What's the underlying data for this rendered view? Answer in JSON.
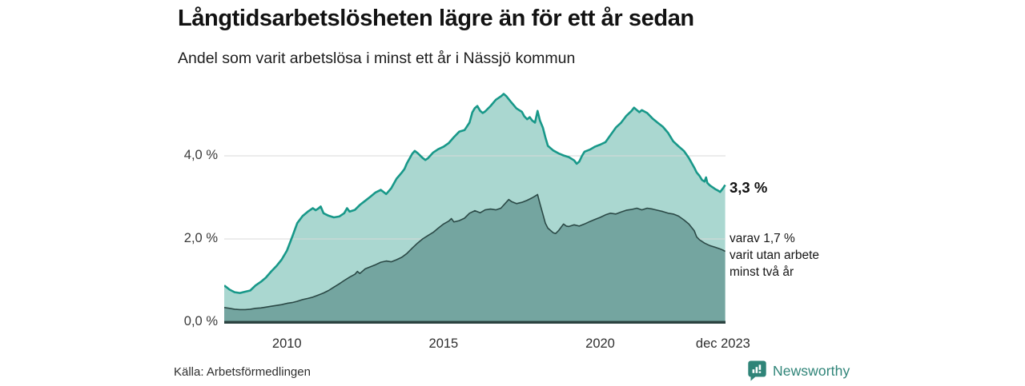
{
  "header": {
    "title": "Långtidsarbetslösheten lägre än för ett år sedan",
    "subtitle": "Andel som varit arbetslösa i minst ett år i Nässjö kommun"
  },
  "annotations": {
    "total_end_label": "3,3 %",
    "subset_end_label": "varav 1,7 %\nvarit utan arbete\nminst två år"
  },
  "footer": {
    "source": "Källa: Arbetsförmedlingen",
    "brand": "Newsworthy",
    "brand_icon": "newsworthy-pin-bar-chart"
  },
  "colors": {
    "total_stroke": "#189889",
    "total_fill": "#aad7d0",
    "subset_stroke": "#2b4946",
    "subset_fill": "#74a5a0",
    "gridline": "#d8d8d8",
    "axis": "#2b4240",
    "brand_teal": "#2f8478",
    "text": "#121212"
  },
  "chart_data": {
    "type": "area",
    "title": "Långtidsarbetslösheten lägre än för ett år sedan",
    "subtitle": "Andel som varit arbetslösa i minst ett år i Nässjö kommun",
    "xlabel": "",
    "ylabel": "",
    "unit": "%",
    "grid": true,
    "legend_position": "right-annotations",
    "x_domain": [
      2008,
      2024
    ],
    "ylim": [
      0,
      5.67
    ],
    "y_ticks": [
      {
        "v": 0,
        "label": "0,0 %"
      },
      {
        "v": 2,
        "label": "2,0 %"
      },
      {
        "v": 4,
        "label": "4,0 %"
      }
    ],
    "x_ticks": [
      {
        "t": 2010,
        "label": "2010"
      },
      {
        "t": 2015,
        "label": "2015"
      },
      {
        "t": 2020,
        "label": "2020"
      },
      {
        "t": 2023.92,
        "label": "dec 2023"
      }
    ],
    "series": [
      {
        "name": "Andel arbetslösa minst ett år",
        "end_value": 3.3,
        "end_label": "3,3 %",
        "stroke": "#189889",
        "fill": "#aad7d0",
        "stroke_width": 2.6,
        "points": [
          [
            2008.0,
            0.88
          ],
          [
            2008.17,
            0.78
          ],
          [
            2008.33,
            0.72
          ],
          [
            2008.5,
            0.7
          ],
          [
            2008.67,
            0.73
          ],
          [
            2008.83,
            0.76
          ],
          [
            2009.0,
            0.88
          ],
          [
            2009.17,
            0.97
          ],
          [
            2009.33,
            1.07
          ],
          [
            2009.5,
            1.22
          ],
          [
            2009.67,
            1.35
          ],
          [
            2009.83,
            1.5
          ],
          [
            2010.0,
            1.72
          ],
          [
            2010.17,
            2.05
          ],
          [
            2010.33,
            2.38
          ],
          [
            2010.5,
            2.55
          ],
          [
            2010.67,
            2.66
          ],
          [
            2010.83,
            2.74
          ],
          [
            2010.92,
            2.69
          ],
          [
            2011.0,
            2.73
          ],
          [
            2011.08,
            2.78
          ],
          [
            2011.17,
            2.62
          ],
          [
            2011.33,
            2.56
          ],
          [
            2011.5,
            2.52
          ],
          [
            2011.67,
            2.54
          ],
          [
            2011.83,
            2.62
          ],
          [
            2011.92,
            2.74
          ],
          [
            2012.0,
            2.66
          ],
          [
            2012.17,
            2.7
          ],
          [
            2012.33,
            2.82
          ],
          [
            2012.5,
            2.92
          ],
          [
            2012.67,
            3.02
          ],
          [
            2012.83,
            3.12
          ],
          [
            2013.0,
            3.18
          ],
          [
            2013.17,
            3.08
          ],
          [
            2013.33,
            3.22
          ],
          [
            2013.5,
            3.45
          ],
          [
            2013.67,
            3.6
          ],
          [
            2013.75,
            3.68
          ],
          [
            2013.83,
            3.82
          ],
          [
            2014.0,
            4.05
          ],
          [
            2014.08,
            4.12
          ],
          [
            2014.17,
            4.07
          ],
          [
            2014.33,
            3.95
          ],
          [
            2014.42,
            3.9
          ],
          [
            2014.5,
            3.94
          ],
          [
            2014.67,
            4.08
          ],
          [
            2014.83,
            4.16
          ],
          [
            2015.0,
            4.22
          ],
          [
            2015.17,
            4.31
          ],
          [
            2015.33,
            4.45
          ],
          [
            2015.5,
            4.58
          ],
          [
            2015.67,
            4.62
          ],
          [
            2015.83,
            4.8
          ],
          [
            2015.92,
            5.05
          ],
          [
            2016.0,
            5.15
          ],
          [
            2016.08,
            5.2
          ],
          [
            2016.17,
            5.08
          ],
          [
            2016.25,
            5.03
          ],
          [
            2016.33,
            5.07
          ],
          [
            2016.5,
            5.2
          ],
          [
            2016.67,
            5.35
          ],
          [
            2016.83,
            5.43
          ],
          [
            2016.92,
            5.49
          ],
          [
            2017.0,
            5.44
          ],
          [
            2017.17,
            5.28
          ],
          [
            2017.33,
            5.14
          ],
          [
            2017.5,
            5.06
          ],
          [
            2017.58,
            4.95
          ],
          [
            2017.67,
            4.88
          ],
          [
            2017.75,
            4.93
          ],
          [
            2017.83,
            4.85
          ],
          [
            2017.92,
            4.8
          ],
          [
            2018.0,
            5.08
          ],
          [
            2018.08,
            4.84
          ],
          [
            2018.17,
            4.68
          ],
          [
            2018.25,
            4.45
          ],
          [
            2018.33,
            4.24
          ],
          [
            2018.5,
            4.13
          ],
          [
            2018.67,
            4.06
          ],
          [
            2018.83,
            4.01
          ],
          [
            2019.0,
            3.97
          ],
          [
            2019.17,
            3.89
          ],
          [
            2019.25,
            3.81
          ],
          [
            2019.33,
            3.86
          ],
          [
            2019.42,
            4.0
          ],
          [
            2019.5,
            4.1
          ],
          [
            2019.67,
            4.15
          ],
          [
            2019.83,
            4.22
          ],
          [
            2020.0,
            4.27
          ],
          [
            2020.17,
            4.33
          ],
          [
            2020.33,
            4.5
          ],
          [
            2020.5,
            4.68
          ],
          [
            2020.67,
            4.8
          ],
          [
            2020.83,
            4.96
          ],
          [
            2021.0,
            5.08
          ],
          [
            2021.08,
            5.16
          ],
          [
            2021.17,
            5.1
          ],
          [
            2021.25,
            5.05
          ],
          [
            2021.33,
            5.1
          ],
          [
            2021.5,
            5.03
          ],
          [
            2021.67,
            4.9
          ],
          [
            2021.83,
            4.8
          ],
          [
            2022.0,
            4.7
          ],
          [
            2022.17,
            4.55
          ],
          [
            2022.33,
            4.35
          ],
          [
            2022.5,
            4.23
          ],
          [
            2022.67,
            4.12
          ],
          [
            2022.83,
            3.95
          ],
          [
            2023.0,
            3.72
          ],
          [
            2023.08,
            3.6
          ],
          [
            2023.17,
            3.52
          ],
          [
            2023.25,
            3.42
          ],
          [
            2023.33,
            3.38
          ],
          [
            2023.38,
            3.48
          ],
          [
            2023.42,
            3.35
          ],
          [
            2023.5,
            3.29
          ],
          [
            2023.67,
            3.2
          ],
          [
            2023.75,
            3.17
          ],
          [
            2023.83,
            3.13
          ],
          [
            2023.92,
            3.22
          ],
          [
            2023.99,
            3.3
          ]
        ]
      },
      {
        "name": "varav utan arbete minst två år",
        "end_value": 1.7,
        "end_label": "varav 1,7 % varit utan arbete minst två år",
        "stroke": "#2b4946",
        "fill": "#74a5a0",
        "stroke_width": 1.6,
        "points": [
          [
            2008.0,
            0.35
          ],
          [
            2008.17,
            0.33
          ],
          [
            2008.33,
            0.31
          ],
          [
            2008.5,
            0.3
          ],
          [
            2008.67,
            0.3
          ],
          [
            2008.83,
            0.31
          ],
          [
            2009.0,
            0.33
          ],
          [
            2009.17,
            0.34
          ],
          [
            2009.33,
            0.36
          ],
          [
            2009.5,
            0.38
          ],
          [
            2009.67,
            0.4
          ],
          [
            2009.83,
            0.42
          ],
          [
            2010.0,
            0.45
          ],
          [
            2010.17,
            0.47
          ],
          [
            2010.33,
            0.5
          ],
          [
            2010.5,
            0.54
          ],
          [
            2010.67,
            0.57
          ],
          [
            2010.83,
            0.6
          ],
          [
            2011.0,
            0.65
          ],
          [
            2011.17,
            0.7
          ],
          [
            2011.33,
            0.76
          ],
          [
            2011.5,
            0.84
          ],
          [
            2011.67,
            0.92
          ],
          [
            2011.83,
            1.0
          ],
          [
            2012.0,
            1.08
          ],
          [
            2012.17,
            1.15
          ],
          [
            2012.25,
            1.22
          ],
          [
            2012.33,
            1.17
          ],
          [
            2012.5,
            1.28
          ],
          [
            2012.67,
            1.33
          ],
          [
            2012.83,
            1.38
          ],
          [
            2013.0,
            1.44
          ],
          [
            2013.17,
            1.47
          ],
          [
            2013.33,
            1.45
          ],
          [
            2013.5,
            1.5
          ],
          [
            2013.67,
            1.56
          ],
          [
            2013.83,
            1.65
          ],
          [
            2014.0,
            1.78
          ],
          [
            2014.17,
            1.9
          ],
          [
            2014.33,
            2.0
          ],
          [
            2014.5,
            2.08
          ],
          [
            2014.67,
            2.16
          ],
          [
            2014.83,
            2.26
          ],
          [
            2015.0,
            2.36
          ],
          [
            2015.17,
            2.43
          ],
          [
            2015.25,
            2.49
          ],
          [
            2015.33,
            2.41
          ],
          [
            2015.5,
            2.44
          ],
          [
            2015.67,
            2.5
          ],
          [
            2015.83,
            2.62
          ],
          [
            2016.0,
            2.68
          ],
          [
            2016.17,
            2.63
          ],
          [
            2016.33,
            2.7
          ],
          [
            2016.5,
            2.72
          ],
          [
            2016.67,
            2.7
          ],
          [
            2016.83,
            2.74
          ],
          [
            2017.0,
            2.88
          ],
          [
            2017.08,
            2.95
          ],
          [
            2017.17,
            2.9
          ],
          [
            2017.33,
            2.85
          ],
          [
            2017.5,
            2.88
          ],
          [
            2017.67,
            2.93
          ],
          [
            2017.83,
            2.99
          ],
          [
            2017.92,
            3.03
          ],
          [
            2018.0,
            3.07
          ],
          [
            2018.08,
            2.84
          ],
          [
            2018.17,
            2.6
          ],
          [
            2018.25,
            2.38
          ],
          [
            2018.33,
            2.26
          ],
          [
            2018.5,
            2.15
          ],
          [
            2018.58,
            2.13
          ],
          [
            2018.67,
            2.2
          ],
          [
            2018.83,
            2.36
          ],
          [
            2018.92,
            2.31
          ],
          [
            2019.0,
            2.3
          ],
          [
            2019.17,
            2.34
          ],
          [
            2019.33,
            2.31
          ],
          [
            2019.5,
            2.36
          ],
          [
            2019.67,
            2.42
          ],
          [
            2019.83,
            2.47
          ],
          [
            2020.0,
            2.52
          ],
          [
            2020.17,
            2.58
          ],
          [
            2020.33,
            2.62
          ],
          [
            2020.5,
            2.6
          ],
          [
            2020.67,
            2.65
          ],
          [
            2020.83,
            2.69
          ],
          [
            2021.0,
            2.71
          ],
          [
            2021.17,
            2.74
          ],
          [
            2021.33,
            2.7
          ],
          [
            2021.5,
            2.74
          ],
          [
            2021.67,
            2.72
          ],
          [
            2021.83,
            2.69
          ],
          [
            2022.0,
            2.66
          ],
          [
            2022.17,
            2.62
          ],
          [
            2022.33,
            2.6
          ],
          [
            2022.5,
            2.55
          ],
          [
            2022.67,
            2.46
          ],
          [
            2022.83,
            2.36
          ],
          [
            2023.0,
            2.2
          ],
          [
            2023.08,
            2.05
          ],
          [
            2023.17,
            1.98
          ],
          [
            2023.33,
            1.9
          ],
          [
            2023.5,
            1.84
          ],
          [
            2023.67,
            1.8
          ],
          [
            2023.83,
            1.76
          ],
          [
            2023.92,
            1.73
          ],
          [
            2023.99,
            1.7
          ]
        ]
      }
    ]
  }
}
